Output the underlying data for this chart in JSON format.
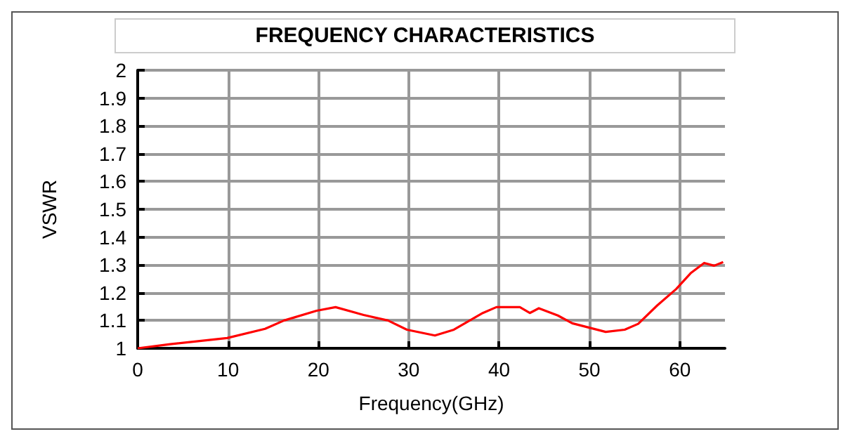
{
  "chart_data": {
    "type": "line",
    "title": "FREQUENCY CHARACTERISTICS",
    "xlabel": "Frequency(GHz)",
    "ylabel": "VSWR",
    "x": [
      0,
      3.6,
      9.9,
      14.1,
      16.2,
      19.8,
      21.9,
      25,
      27.7,
      29.8,
      32.9,
      35,
      38.2,
      39.7,
      42.3,
      43.4,
      44.4,
      46.5,
      48.1,
      51.8,
      53.9,
      55.4,
      57.5,
      59.6,
      61.2,
      62.7,
      63.8,
      64.8
    ],
    "series": [
      {
        "color": "#ff0000",
        "values": [
          1.0,
          1.015,
          1.037,
          1.07,
          1.1,
          1.135,
          1.148,
          1.12,
          1.1,
          1.067,
          1.046,
          1.067,
          1.127,
          1.148,
          1.148,
          1.127,
          1.144,
          1.118,
          1.09,
          1.059,
          1.067,
          1.088,
          1.154,
          1.213,
          1.27,
          1.307,
          1.297,
          1.31
        ]
      }
    ],
    "xlim": [
      0,
      65
    ],
    "xticks": [
      0,
      10,
      20,
      30,
      40,
      50,
      60
    ],
    "ylim": [
      1,
      2
    ],
    "yticks": [
      1,
      1.1,
      1.2,
      1.3,
      1.4,
      1.5,
      1.6,
      1.7,
      1.8,
      1.9,
      2
    ],
    "grid": true,
    "marker": "none",
    "line_style": "solid"
  }
}
